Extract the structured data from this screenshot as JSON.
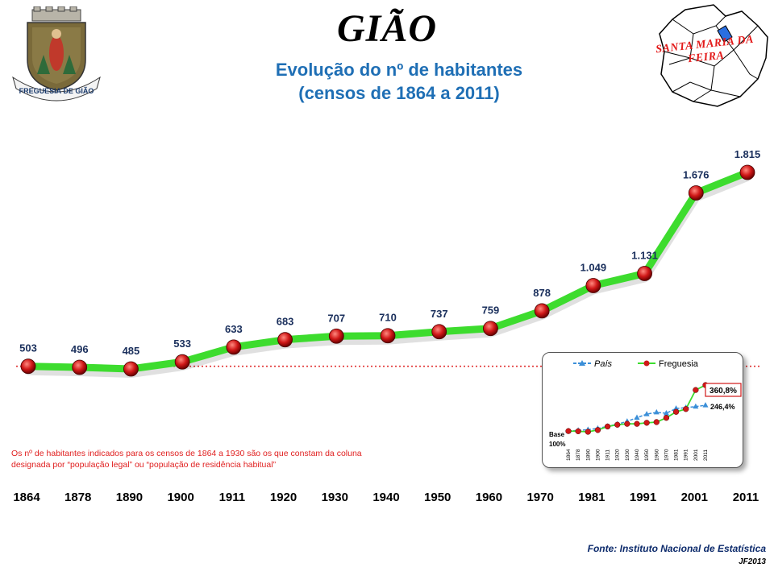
{
  "header": {
    "title": "GIÃO",
    "subtitle_line1": "Evolução do nº de habitantes",
    "subtitle_line2": "(censos de 1864 a 2011)"
  },
  "logos": {
    "left_emblem_text": "FREGUESIA DE GIÃO",
    "right_map_label": "SANTA MARIA DA FEIRA"
  },
  "note": "Os nº de habitantes indicados para os censos de 1864 a 1930 são os que constam da coluna designada por “população legal” ou “população de residência habitual”",
  "footer": {
    "source": "Fonte: Instituto Nacional de Estatística",
    "author": "JF2013"
  },
  "colors": {
    "line": "#3ddc2e",
    "marker": "#d01818",
    "label": "#1a2f5c",
    "reference": "#e03030",
    "country": "#3b8fd8"
  },
  "chart_data": [
    {
      "type": "line",
      "title": "Evolução do nº de habitantes",
      "categories": [
        "1864",
        "1878",
        "1890",
        "1900",
        "1911",
        "1920",
        "1930",
        "1940",
        "1950",
        "1960",
        "1970",
        "1981",
        "1991",
        "2001",
        "2011"
      ],
      "series": [
        {
          "values": [
            503,
            496,
            485,
            533,
            633,
            683,
            707,
            710,
            737,
            759,
            878,
            1049,
            1131,
            1676,
            1815
          ],
          "labels": [
            "503",
            "496",
            "485",
            "533",
            "633",
            "683",
            "707",
            "710",
            "737",
            "759",
            "878",
            "1.049",
            "1.131",
            "1.676",
            "1.815"
          ]
        }
      ],
      "reference_line": 503,
      "grid": false
    },
    {
      "type": "line",
      "categories": [
        "1864",
        "1878",
        "1890",
        "1900",
        "1911",
        "1920",
        "1930",
        "1940",
        "1950",
        "1960",
        "1970",
        "1981",
        "1991",
        "2001",
        "2011"
      ],
      "series": [
        {
          "name": "País",
          "values": [
            100,
            104,
            108,
            115,
            127,
            139,
            155,
            176,
            196,
            206,
            201,
            228,
            233,
            239,
            246.4
          ]
        },
        {
          "name": "Freguesia",
          "values": [
            100,
            99,
            96,
            106,
            126,
            136,
            141,
            141,
            147,
            151,
            175,
            209,
            225,
            333,
            360.8
          ]
        }
      ],
      "labels": {
        "base": "Base",
        "base_value": "100%",
        "country_end": "246,4%",
        "parish_end": "360,8%"
      },
      "legend": "top"
    }
  ]
}
